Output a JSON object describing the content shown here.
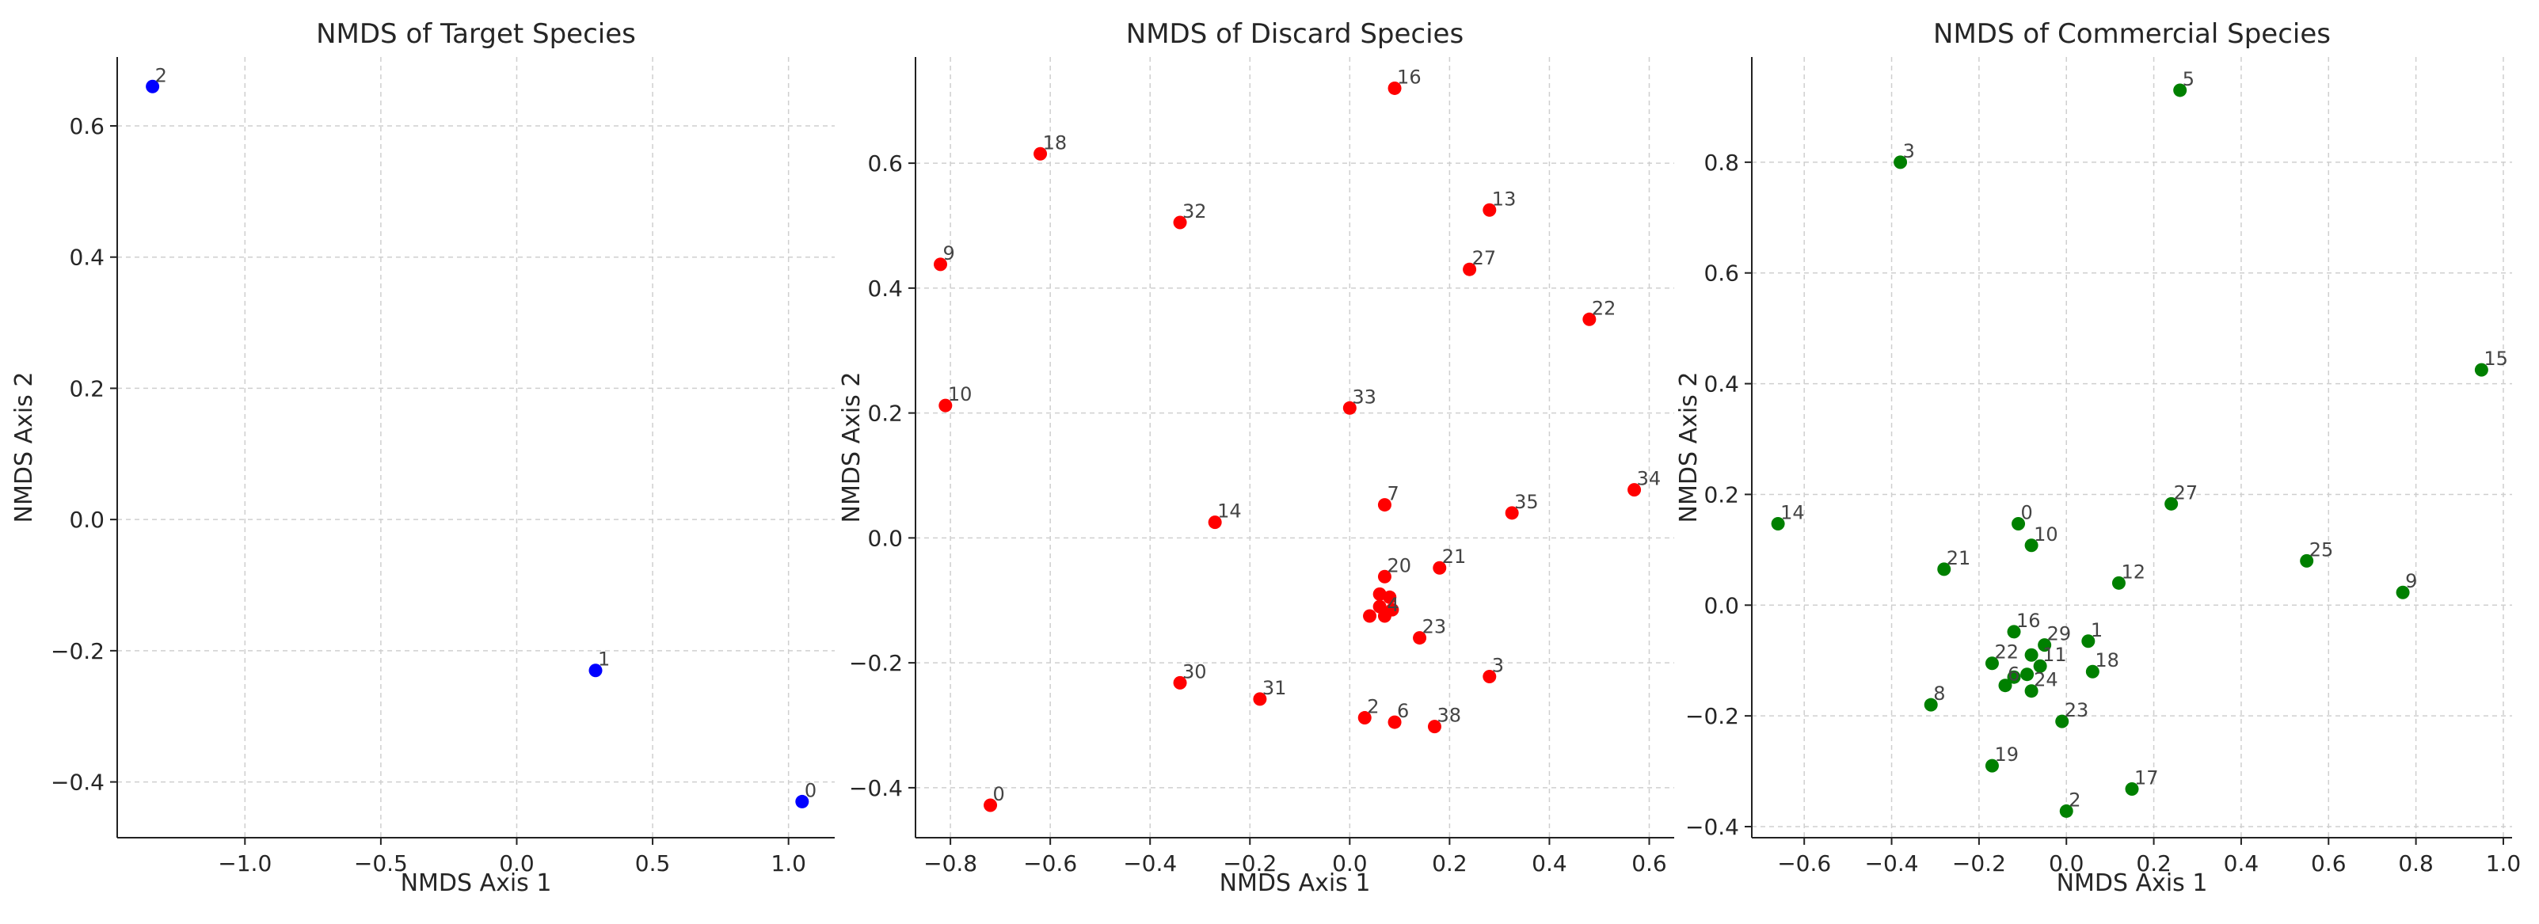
{
  "chart_data": [
    {
      "type": "scatter",
      "title": "NMDS of Target Species",
      "xlabel": "NMDS Axis 1",
      "ylabel": "NMDS Axis 2",
      "xlim": [
        -1.47,
        1.17
      ],
      "ylim": [
        -0.485,
        0.705
      ],
      "xticks": [
        -1.0,
        -0.5,
        0.0,
        0.5,
        1.0
      ],
      "yticks": [
        -0.4,
        -0.2,
        0.0,
        0.2,
        0.4,
        0.6
      ],
      "grid": true,
      "color": "#0000ff",
      "points": [
        {
          "label": "2",
          "x": -1.34,
          "y": 0.66
        },
        {
          "label": "1",
          "x": 0.29,
          "y": -0.23
        },
        {
          "label": "0",
          "x": 1.05,
          "y": -0.43
        }
      ]
    },
    {
      "type": "scatter",
      "title": "NMDS of Discard Species",
      "xlabel": "NMDS Axis 1",
      "ylabel": "NMDS Axis 2",
      "xlim": [
        -0.87,
        0.65
      ],
      "ylim": [
        -0.48,
        0.77
      ],
      "xticks": [
        -0.8,
        -0.6,
        -0.4,
        -0.2,
        0.0,
        0.2,
        0.4,
        0.6
      ],
      "yticks": [
        -0.4,
        -0.2,
        0.0,
        0.2,
        0.4,
        0.6
      ],
      "grid": true,
      "color": "#ff0000",
      "points": [
        {
          "label": "16",
          "x": 0.09,
          "y": 0.72
        },
        {
          "label": "18",
          "x": -0.62,
          "y": 0.615
        },
        {
          "label": "32",
          "x": -0.34,
          "y": 0.505
        },
        {
          "label": "13",
          "x": 0.28,
          "y": 0.525
        },
        {
          "label": "9",
          "x": -0.82,
          "y": 0.438
        },
        {
          "label": "27",
          "x": 0.24,
          "y": 0.43
        },
        {
          "label": "22",
          "x": 0.48,
          "y": 0.35
        },
        {
          "label": "10",
          "x": -0.81,
          "y": 0.212
        },
        {
          "label": "33",
          "x": 0.0,
          "y": 0.208
        },
        {
          "label": "34",
          "x": 0.57,
          "y": 0.077
        },
        {
          "label": "7",
          "x": 0.07,
          "y": 0.053
        },
        {
          "label": "35",
          "x": 0.325,
          "y": 0.04
        },
        {
          "label": "14",
          "x": -0.27,
          "y": 0.025
        },
        {
          "label": "21",
          "x": 0.18,
          "y": -0.048
        },
        {
          "label": "20",
          "x": 0.07,
          "y": -0.062
        },
        {
          "label": "",
          "x": 0.06,
          "y": -0.09
        },
        {
          "label": "",
          "x": 0.08,
          "y": -0.095
        },
        {
          "label": "",
          "x": 0.06,
          "y": -0.11
        },
        {
          "label": "",
          "x": 0.085,
          "y": -0.115
        },
        {
          "label": "4",
          "x": 0.07,
          "y": -0.125
        },
        {
          "label": "",
          "x": 0.04,
          "y": -0.125
        },
        {
          "label": "23",
          "x": 0.14,
          "y": -0.16
        },
        {
          "label": "3",
          "x": 0.28,
          "y": -0.222
        },
        {
          "label": "30",
          "x": -0.34,
          "y": -0.232
        },
        {
          "label": "31",
          "x": -0.18,
          "y": -0.258
        },
        {
          "label": "2",
          "x": 0.03,
          "y": -0.288
        },
        {
          "label": "6",
          "x": 0.09,
          "y": -0.295
        },
        {
          "label": "38",
          "x": 0.17,
          "y": -0.302
        },
        {
          "label": "0",
          "x": -0.72,
          "y": -0.428
        }
      ]
    },
    {
      "type": "scatter",
      "title": "NMDS of Commercial Species",
      "xlabel": "NMDS Axis 1",
      "ylabel": "NMDS Axis 2",
      "xlim": [
        -0.72,
        1.02
      ],
      "ylim": [
        -0.42,
        0.99
      ],
      "xticks": [
        -0.6,
        -0.4,
        -0.2,
        0.0,
        0.2,
        0.4,
        0.6,
        0.8,
        1.0
      ],
      "yticks": [
        -0.4,
        -0.2,
        0.0,
        0.2,
        0.4,
        0.6,
        0.8
      ],
      "grid": true,
      "color": "#008000",
      "points": [
        {
          "label": "5",
          "x": 0.26,
          "y": 0.93
        },
        {
          "label": "3",
          "x": -0.38,
          "y": 0.8
        },
        {
          "label": "15",
          "x": 0.95,
          "y": 0.425
        },
        {
          "label": "14",
          "x": -0.66,
          "y": 0.147
        },
        {
          "label": "27",
          "x": 0.24,
          "y": 0.183
        },
        {
          "label": "0",
          "x": -0.11,
          "y": 0.147
        },
        {
          "label": "10",
          "x": -0.08,
          "y": 0.108
        },
        {
          "label": "25",
          "x": 0.55,
          "y": 0.08
        },
        {
          "label": "21",
          "x": -0.28,
          "y": 0.065
        },
        {
          "label": "12",
          "x": 0.12,
          "y": 0.04
        },
        {
          "label": "9",
          "x": 0.77,
          "y": 0.023
        },
        {
          "label": "16",
          "x": -0.12,
          "y": -0.048
        },
        {
          "label": "1",
          "x": 0.05,
          "y": -0.065
        },
        {
          "label": "29",
          "x": -0.05,
          "y": -0.072
        },
        {
          "label": "",
          "x": -0.08,
          "y": -0.09
        },
        {
          "label": "22",
          "x": -0.17,
          "y": -0.105
        },
        {
          "label": "11",
          "x": -0.06,
          "y": -0.11
        },
        {
          "label": "18",
          "x": 0.06,
          "y": -0.12
        },
        {
          "label": "",
          "x": -0.09,
          "y": -0.125
        },
        {
          "label": "",
          "x": -0.12,
          "y": -0.13
        },
        {
          "label": "6",
          "x": -0.14,
          "y": -0.145
        },
        {
          "label": "24",
          "x": -0.08,
          "y": -0.155
        },
        {
          "label": "8",
          "x": -0.31,
          "y": -0.18
        },
        {
          "label": "23",
          "x": -0.01,
          "y": -0.21
        },
        {
          "label": "19",
          "x": -0.17,
          "y": -0.29
        },
        {
          "label": "17",
          "x": 0.15,
          "y": -0.332
        },
        {
          "label": "2",
          "x": 0.0,
          "y": -0.372
        }
      ]
    }
  ]
}
